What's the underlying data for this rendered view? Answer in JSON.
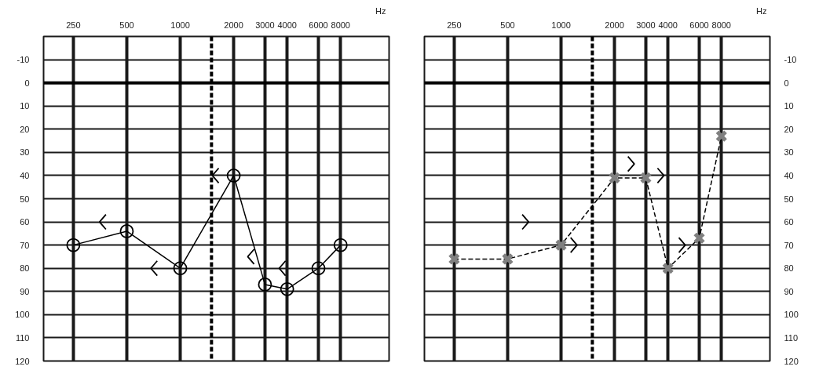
{
  "chart_data": [
    {
      "type": "line",
      "log": "x",
      "xlabel": "Hz",
      "xlim": [
        170,
        15000
      ],
      "xticks": [
        250,
        500,
        1000,
        2000,
        3000,
        4000,
        6000,
        8000
      ],
      "ylim": [
        120,
        -20
      ],
      "yticks": [
        -10,
        0,
        10,
        20,
        30,
        40,
        50,
        60,
        70,
        80,
        90,
        100,
        110,
        120
      ],
      "grid": true,
      "ref_lines": [
        {
          "axis": "x",
          "value": 1500,
          "line_style": "dashed",
          "color": "#000000"
        },
        {
          "axis": "y",
          "value": 0,
          "color": "#000000"
        }
      ],
      "series": [
        {
          "x": [
            250,
            500,
            1000,
            2000,
            3000,
            4000,
            6000,
            8000
          ],
          "values": [
            70,
            64,
            80,
            40,
            87,
            89,
            80,
            70
          ],
          "color": "#000000",
          "marker": "circle",
          "line_style": "solid"
        },
        {
          "type": "scatter",
          "x": [
            366,
            712,
            1580,
            2500,
            3760
          ],
          "values": [
            60,
            80,
            40,
            75,
            80
          ],
          "color": "#000000"
        }
      ]
    },
    {
      "type": "line",
      "log": "x",
      "xlabel": "Hz",
      "xlim": [
        170,
        15000
      ],
      "xticks": [
        250,
        500,
        1000,
        2000,
        3000,
        4000,
        6000,
        8000
      ],
      "y2lim": [
        120,
        -20
      ],
      "y2ticks": [
        -10,
        0,
        10,
        20,
        30,
        40,
        50,
        60,
        70,
        80,
        90,
        100,
        110,
        120
      ],
      "grid": true,
      "ref_lines": [
        {
          "axis": "x",
          "value": 1500,
          "line_style": "dashed",
          "color": "#000000"
        },
        {
          "axis": "y2",
          "value": 0,
          "color": "#000000"
        }
      ],
      "series": [
        {
          "axis": "y2",
          "x": [
            250,
            500,
            1000,
            2000,
            3000,
            4000,
            6000,
            8000
          ],
          "values": [
            76,
            76,
            70,
            41,
            41,
            80,
            67,
            23
          ],
          "color": "#000000",
          "colors": [
            "#808080",
            "#808080",
            "#808080",
            "#808080",
            "#808080",
            "#808080",
            "#808080",
            "#808080"
          ],
          "marker": "cross",
          "line_style": "dashed"
        },
        {
          "type": "scatter",
          "axis": "y2",
          "x": [
            630,
            1180,
            2480,
            3640,
            4800
          ],
          "values": [
            60,
            70,
            35,
            40,
            70
          ],
          "color": "#000000"
        }
      ]
    }
  ]
}
